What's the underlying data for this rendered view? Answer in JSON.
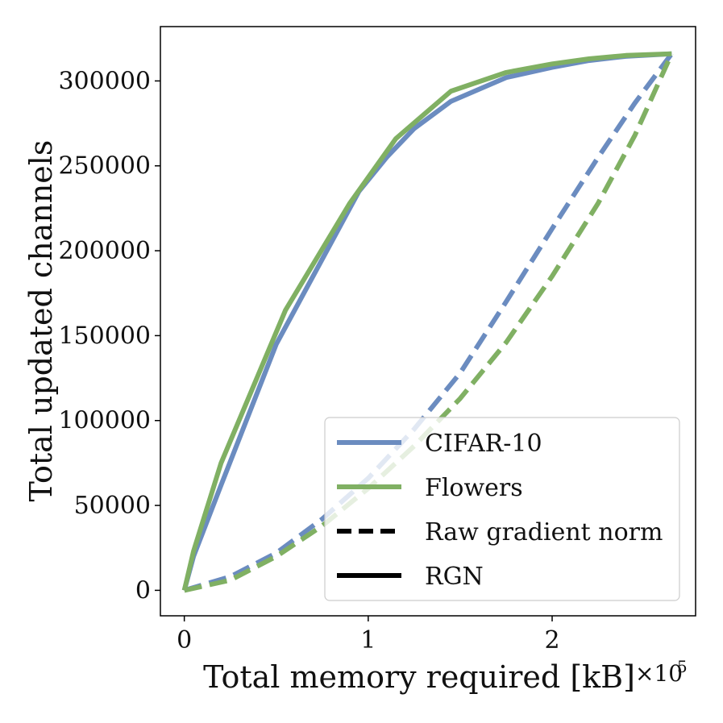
{
  "chart_data": {
    "type": "line",
    "xlabel": "Total memory required [kB]",
    "x_multiplier": "×10",
    "x_multiplier_exp": "5",
    "ylabel": "Total updated channels",
    "xlim": [
      -0.13,
      2.78
    ],
    "ylim": [
      -15000,
      332000
    ],
    "xticks": [
      0,
      1,
      2
    ],
    "xtick_labels": [
      "0",
      "1",
      "2"
    ],
    "yticks": [
      0,
      50000,
      100000,
      150000,
      200000,
      250000,
      300000
    ],
    "ytick_labels": [
      "0",
      "50000",
      "100000",
      "150000",
      "200000",
      "250000",
      "300000"
    ],
    "grid": false,
    "legend_position": "lower-right",
    "colors": {
      "cifar": "#6b8cc0",
      "flowers": "#80b063",
      "legend_line": "#000000"
    },
    "legend": [
      {
        "label": "CIFAR-10",
        "style": "solid",
        "color": "#6b8cc0"
      },
      {
        "label": "Flowers",
        "style": "solid",
        "color": "#80b063"
      },
      {
        "label": "Raw gradient norm",
        "style": "dashed",
        "color": "#000000"
      },
      {
        "label": "RGN",
        "style": "solid",
        "color": "#000000"
      }
    ],
    "series": [
      {
        "dataset": "CIFAR-10",
        "method": "RGN",
        "style": "solid",
        "color": "#6b8cc0",
        "x": [
          0,
          0.05,
          0.2,
          0.5,
          0.95,
          1.1,
          1.25,
          1.45,
          1.75,
          2.0,
          2.2,
          2.4,
          2.65
        ],
        "y": [
          0,
          20000,
          62000,
          145000,
          235000,
          255000,
          272000,
          288000,
          302000,
          308000,
          312000,
          314500,
          316000
        ]
      },
      {
        "dataset": "Flowers",
        "method": "RGN",
        "style": "solid",
        "color": "#80b063",
        "x": [
          0,
          0.05,
          0.2,
          0.55,
          0.9,
          1.15,
          1.45,
          1.75,
          2.0,
          2.2,
          2.4,
          2.65
        ],
        "y": [
          0,
          23000,
          75000,
          165000,
          228000,
          266000,
          294000,
          305000,
          310000,
          313000,
          315000,
          316000
        ]
      },
      {
        "dataset": "CIFAR-10",
        "method": "Raw gradient norm",
        "style": "dashed",
        "color": "#6b8cc0",
        "x": [
          0,
          0.25,
          0.5,
          0.75,
          1.0,
          1.25,
          1.5,
          1.75,
          2.0,
          2.25,
          2.45,
          2.65
        ],
        "y": [
          0,
          8000,
          22000,
          42000,
          66000,
          95000,
          128000,
          170000,
          213000,
          255000,
          287000,
          316000
        ]
      },
      {
        "dataset": "Flowers",
        "method": "Raw gradient norm",
        "style": "dashed",
        "color": "#80b063",
        "x": [
          0,
          0.25,
          0.5,
          0.75,
          1.0,
          1.25,
          1.5,
          1.75,
          2.0,
          2.25,
          2.45,
          2.65
        ],
        "y": [
          0,
          6000,
          20000,
          38000,
          60000,
          85000,
          113000,
          146000,
          185000,
          228000,
          268000,
          316000
        ]
      }
    ]
  }
}
